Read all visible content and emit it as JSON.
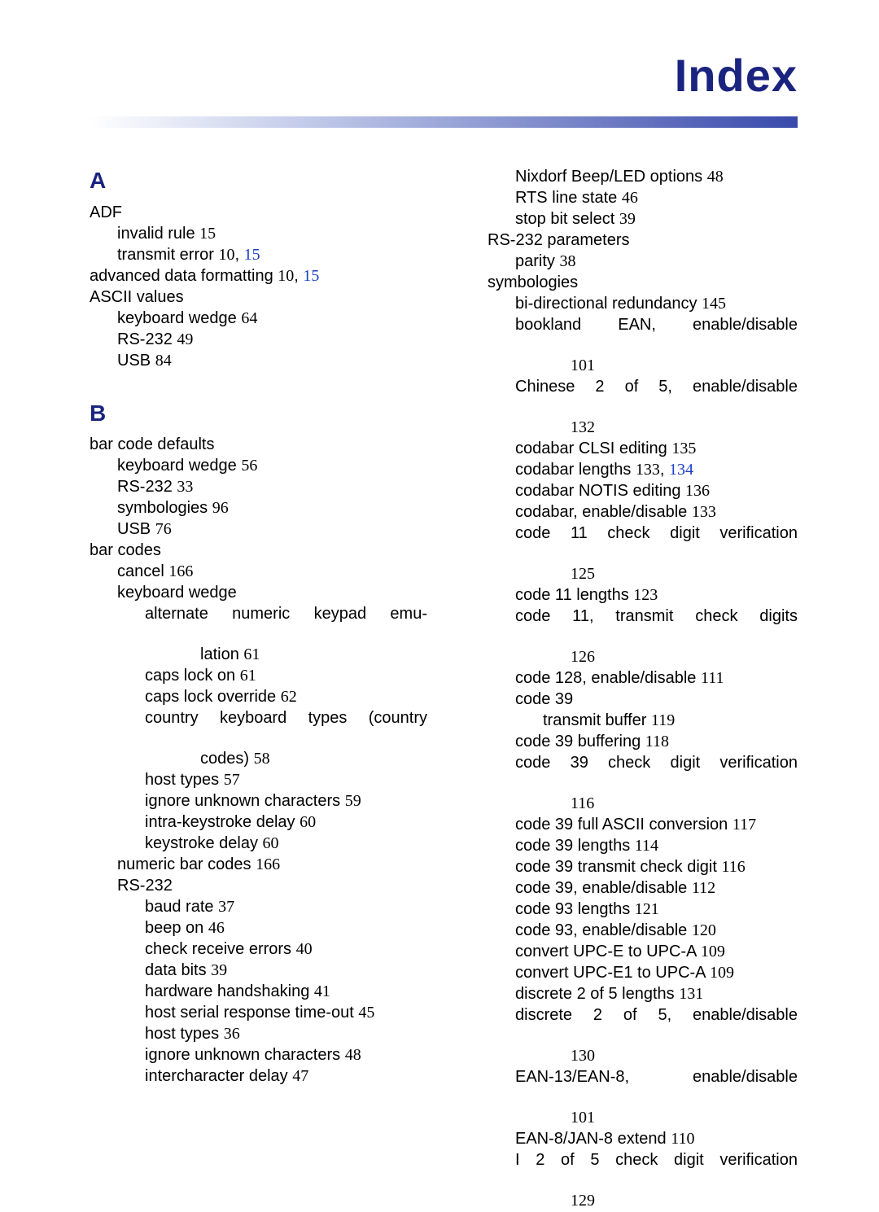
{
  "title": "Index",
  "sections": {
    "A": {
      "letter": "A",
      "entries": [
        {
          "level": 0,
          "parts": [
            {
              "t": "ADF"
            }
          ]
        },
        {
          "level": 1,
          "parts": [
            {
              "t": "invalid rule "
            },
            {
              "n": "15"
            }
          ]
        },
        {
          "level": 1,
          "parts": [
            {
              "t": "transmit error "
            },
            {
              "n": "10"
            },
            {
              "sep": ", "
            },
            {
              "l": "15"
            }
          ]
        },
        {
          "level": 0,
          "parts": [
            {
              "t": "advanced data formatting "
            },
            {
              "n": "10"
            },
            {
              "sep": ", "
            },
            {
              "l": "15"
            }
          ]
        },
        {
          "level": 0,
          "parts": [
            {
              "t": "ASCII values"
            }
          ]
        },
        {
          "level": 1,
          "parts": [
            {
              "t": "keyboard wedge "
            },
            {
              "n": "64"
            }
          ]
        },
        {
          "level": 1,
          "parts": [
            {
              "t": "RS-232 "
            },
            {
              "n": "49"
            }
          ]
        },
        {
          "level": 1,
          "parts": [
            {
              "t": "USB "
            },
            {
              "n": "84"
            }
          ]
        }
      ]
    },
    "B": {
      "letter": "B",
      "entries": [
        {
          "level": 0,
          "parts": [
            {
              "t": "bar code defaults"
            }
          ]
        },
        {
          "level": 1,
          "parts": [
            {
              "t": "keyboard wedge "
            },
            {
              "n": "56"
            }
          ]
        },
        {
          "level": 1,
          "parts": [
            {
              "t": "RS-232 "
            },
            {
              "n": "33"
            }
          ]
        },
        {
          "level": 1,
          "parts": [
            {
              "t": "symbologies "
            },
            {
              "n": "96"
            }
          ]
        },
        {
          "level": 1,
          "parts": [
            {
              "t": "USB "
            },
            {
              "n": "76"
            }
          ]
        },
        {
          "level": 0,
          "parts": [
            {
              "t": "bar codes"
            }
          ]
        },
        {
          "level": 1,
          "parts": [
            {
              "t": "cancel "
            },
            {
              "n": "166"
            }
          ]
        },
        {
          "level": 1,
          "parts": [
            {
              "t": "keyboard wedge"
            }
          ]
        },
        {
          "level": 2,
          "justify": true,
          "parts": [
            {
              "t": "alternate numeric keypad emu-"
            }
          ]
        },
        {
          "level": 4,
          "parts": [
            {
              "t": "lation "
            },
            {
              "n": "61"
            }
          ]
        },
        {
          "level": 2,
          "parts": [
            {
              "t": "caps lock on "
            },
            {
              "n": "61"
            }
          ]
        },
        {
          "level": 2,
          "parts": [
            {
              "t": "caps lock override "
            },
            {
              "n": "62"
            }
          ]
        },
        {
          "level": 2,
          "justify": true,
          "parts": [
            {
              "t": "country keyboard types (country"
            }
          ]
        },
        {
          "level": 4,
          "parts": [
            {
              "t": "codes) "
            },
            {
              "n": "58"
            }
          ]
        },
        {
          "level": 2,
          "parts": [
            {
              "t": "host types "
            },
            {
              "n": "57"
            }
          ]
        },
        {
          "level": 2,
          "parts": [
            {
              "t": "ignore unknown characters "
            },
            {
              "n": "59"
            }
          ]
        },
        {
          "level": 2,
          "parts": [
            {
              "t": "intra-keystroke delay "
            },
            {
              "n": "60"
            }
          ]
        },
        {
          "level": 2,
          "parts": [
            {
              "t": "keystroke delay "
            },
            {
              "n": "60"
            }
          ]
        },
        {
          "level": 1,
          "parts": [
            {
              "t": "numeric bar codes "
            },
            {
              "n": "166"
            }
          ]
        },
        {
          "level": 1,
          "parts": [
            {
              "t": "RS-232"
            }
          ]
        },
        {
          "level": 2,
          "parts": [
            {
              "t": "baud rate "
            },
            {
              "n": "37"
            }
          ]
        },
        {
          "level": 2,
          "parts": [
            {
              "t": "beep on "
            },
            {
              "n": "46"
            }
          ]
        },
        {
          "level": 2,
          "parts": [
            {
              "t": "check receive errors "
            },
            {
              "n": "40"
            }
          ]
        },
        {
          "level": 2,
          "parts": [
            {
              "t": "data bits "
            },
            {
              "n": "39"
            }
          ]
        },
        {
          "level": 2,
          "parts": [
            {
              "t": "hardware handshaking "
            },
            {
              "n": "41"
            }
          ]
        },
        {
          "level": 2,
          "parts": [
            {
              "t": "host serial response time-out "
            },
            {
              "n": "45"
            }
          ]
        },
        {
          "level": 2,
          "parts": [
            {
              "t": "host types "
            },
            {
              "n": "36"
            }
          ]
        },
        {
          "level": 2,
          "parts": [
            {
              "t": "ignore unknown characters "
            },
            {
              "n": "48"
            }
          ]
        },
        {
          "level": 2,
          "parts": [
            {
              "t": "intercharacter delay "
            },
            {
              "n": "47"
            }
          ]
        }
      ]
    },
    "right": {
      "entries": [
        {
          "level": 2,
          "parts": [
            {
              "t": "Nixdorf Beep/LED options "
            },
            {
              "n": "48"
            }
          ]
        },
        {
          "level": 2,
          "parts": [
            {
              "t": "RTS line state "
            },
            {
              "n": "46"
            }
          ]
        },
        {
          "level": 2,
          "parts": [
            {
              "t": "stop bit select "
            },
            {
              "n": "39"
            }
          ]
        },
        {
          "level": 1,
          "parts": [
            {
              "t": "RS-232 parameters"
            }
          ]
        },
        {
          "level": 2,
          "parts": [
            {
              "t": "parity "
            },
            {
              "n": "38"
            }
          ]
        },
        {
          "level": 1,
          "parts": [
            {
              "t": "symbologies"
            }
          ]
        },
        {
          "level": 2,
          "parts": [
            {
              "t": "bi-directional redundancy "
            },
            {
              "n": "145"
            }
          ]
        },
        {
          "level": 2,
          "justify": true,
          "parts": [
            {
              "t": "bookland EAN, enable/disable"
            }
          ]
        },
        {
          "level": 4,
          "parts": [
            {
              "n": "101"
            }
          ]
        },
        {
          "level": 2,
          "justify": true,
          "parts": [
            {
              "t": "Chinese 2 of 5, enable/disable"
            }
          ]
        },
        {
          "level": 4,
          "parts": [
            {
              "n": "132"
            }
          ]
        },
        {
          "level": 2,
          "parts": [
            {
              "t": "codabar CLSI editing "
            },
            {
              "n": "135"
            }
          ]
        },
        {
          "level": 2,
          "parts": [
            {
              "t": "codabar lengths "
            },
            {
              "n": "133"
            },
            {
              "sep": ", "
            },
            {
              "l": "134"
            }
          ]
        },
        {
          "level": 2,
          "parts": [
            {
              "t": "codabar NOTIS editing "
            },
            {
              "n": "136"
            }
          ]
        },
        {
          "level": 2,
          "parts": [
            {
              "t": "codabar, enable/disable "
            },
            {
              "n": "133"
            }
          ]
        },
        {
          "level": 2,
          "justify": true,
          "parts": [
            {
              "t": "code 11 check digit verification"
            }
          ]
        },
        {
          "level": 4,
          "parts": [
            {
              "n": "125"
            }
          ]
        },
        {
          "level": 2,
          "parts": [
            {
              "t": "code 11 lengths "
            },
            {
              "n": "123"
            }
          ]
        },
        {
          "level": 2,
          "justify": true,
          "parts": [
            {
              "t": "code 11, transmit check digits"
            }
          ]
        },
        {
          "level": 4,
          "parts": [
            {
              "n": "126"
            }
          ]
        },
        {
          "level": 2,
          "parts": [
            {
              "t": "code 128, enable/disable "
            },
            {
              "n": "111"
            }
          ]
        },
        {
          "level": 2,
          "parts": [
            {
              "t": "code 39"
            }
          ]
        },
        {
          "level": 3,
          "parts": [
            {
              "t": "transmit buffer "
            },
            {
              "n": "119"
            }
          ]
        },
        {
          "level": 2,
          "parts": [
            {
              "t": "code 39 buffering "
            },
            {
              "n": "118"
            }
          ]
        },
        {
          "level": 2,
          "justify": true,
          "parts": [
            {
              "t": "code 39 check digit verification"
            }
          ]
        },
        {
          "level": 4,
          "parts": [
            {
              "n": "116"
            }
          ]
        },
        {
          "level": 2,
          "parts": [
            {
              "t": "code 39 full ASCII conversion "
            },
            {
              "n": "117"
            }
          ]
        },
        {
          "level": 2,
          "parts": [
            {
              "t": "code 39 lengths "
            },
            {
              "n": "114"
            }
          ]
        },
        {
          "level": 2,
          "parts": [
            {
              "t": "code 39 transmit check digit "
            },
            {
              "n": "116"
            }
          ]
        },
        {
          "level": 2,
          "parts": [
            {
              "t": "code 39, enable/disable "
            },
            {
              "n": "112"
            }
          ]
        },
        {
          "level": 2,
          "parts": [
            {
              "t": "code 93 lengths "
            },
            {
              "n": "121"
            }
          ]
        },
        {
          "level": 2,
          "parts": [
            {
              "t": "code 93, enable/disable "
            },
            {
              "n": "120"
            }
          ]
        },
        {
          "level": 2,
          "parts": [
            {
              "t": "convert UPC-E to UPC-A "
            },
            {
              "n": "109"
            }
          ]
        },
        {
          "level": 2,
          "parts": [
            {
              "t": "convert UPC-E1 to UPC-A "
            },
            {
              "n": "109"
            }
          ]
        },
        {
          "level": 2,
          "parts": [
            {
              "t": "discrete 2 of 5 lengths "
            },
            {
              "n": "131"
            }
          ]
        },
        {
          "level": 2,
          "justify": true,
          "parts": [
            {
              "t": "discrete 2 of 5, enable/disable"
            }
          ]
        },
        {
          "level": 4,
          "parts": [
            {
              "n": "130"
            }
          ]
        },
        {
          "level": 2,
          "justify": true,
          "parts": [
            {
              "t": "EAN-13/EAN-8, enable/disable"
            }
          ]
        },
        {
          "level": 4,
          "parts": [
            {
              "n": "101"
            }
          ]
        },
        {
          "level": 2,
          "parts": [
            {
              "t": "EAN-8/JAN-8 extend "
            },
            {
              "n": "110"
            }
          ]
        },
        {
          "level": 2,
          "justify": true,
          "parts": [
            {
              "t": "I 2 of 5 check digit verification"
            }
          ]
        },
        {
          "level": 4,
          "parts": [
            {
              "n": "129"
            }
          ]
        }
      ]
    }
  }
}
